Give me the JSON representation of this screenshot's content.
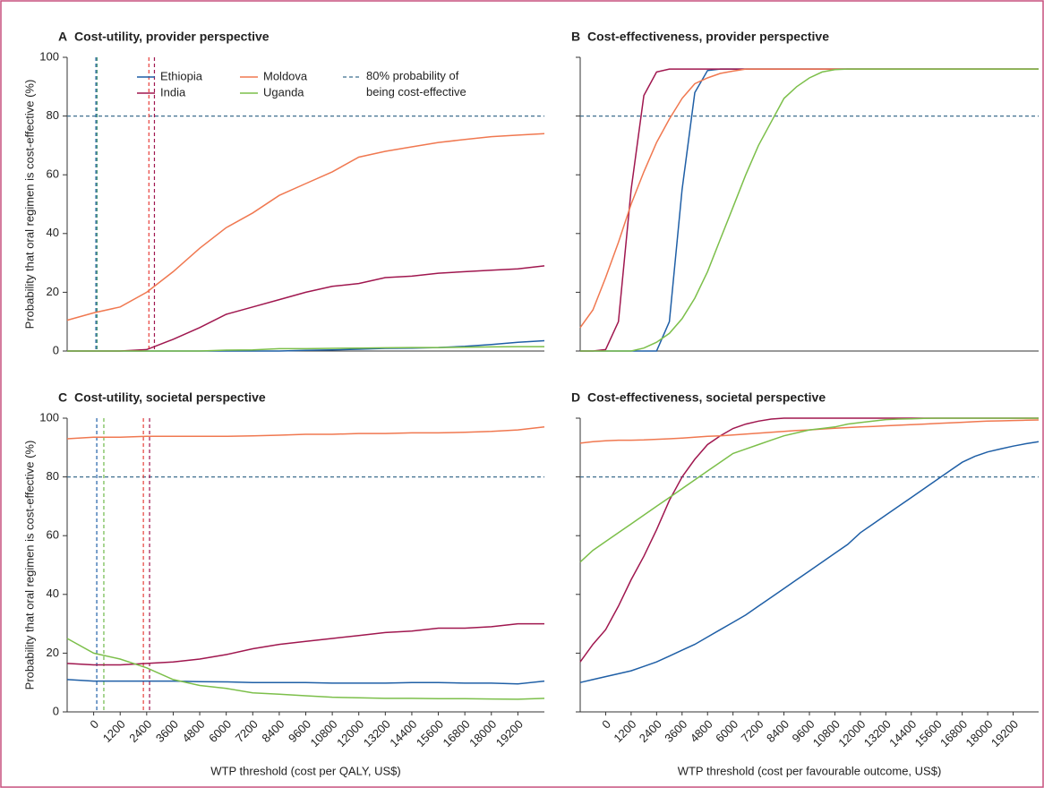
{
  "chart_data": [
    {
      "type": "line",
      "label": "A",
      "title": "Cost-utility, provider perspective",
      "ylabel": "Probability that oral regimen is cost-effective (%)",
      "x": [
        -1200,
        0,
        1200,
        2400,
        3600,
        4800,
        6000,
        7200,
        8400,
        9600,
        10800,
        12000,
        13200,
        14400,
        15600,
        16800,
        18000,
        19200,
        20400
      ],
      "xlim": [
        -1200,
        20400
      ],
      "ylim": [
        0,
        100
      ],
      "yticks": [
        0,
        20,
        40,
        60,
        80,
        100
      ],
      "ytick_labels": true,
      "legend": true,
      "reference": {
        "value": 80,
        "color": "#3f6f8f",
        "label": [
          "80% probability of",
          "being cost-effective"
        ]
      },
      "vlines": [
        {
          "x": 100,
          "color": "#1f5fa6"
        },
        {
          "x": 150,
          "color": "#3f8f6a"
        },
        {
          "x": 2500,
          "color": "#e8403a"
        },
        {
          "x": 2750,
          "color": "#a0174f"
        }
      ],
      "series": [
        {
          "name": "Ethiopia",
          "color": "#1f5fa6",
          "values": [
            0,
            0,
            0,
            0,
            0,
            0,
            0,
            0,
            0,
            0.2,
            0.4,
            0.6,
            0.9,
            1,
            1.2,
            1.6,
            2.2,
            3,
            3.5
          ]
        },
        {
          "name": "India",
          "color": "#a0174f",
          "values": [
            0,
            0,
            0,
            0.5,
            4,
            8,
            12.5,
            15,
            17.5,
            20,
            22,
            23,
            25,
            25.5,
            26.5,
            27,
            27.5,
            28,
            29
          ]
        },
        {
          "name": "Moldova",
          "color": "#f07850",
          "values": [
            10.5,
            13,
            15,
            20,
            27,
            35,
            42,
            47,
            53,
            57,
            61,
            66,
            68,
            69.5,
            71,
            72,
            73,
            73.5,
            74
          ]
        },
        {
          "name": "Uganda",
          "color": "#7cbf4a",
          "values": [
            0,
            0,
            0,
            0,
            0,
            0,
            0.3,
            0.4,
            0.8,
            0.8,
            0.9,
            1,
            1.1,
            1.2,
            1.2,
            1.3,
            1.4,
            1.5,
            1.5
          ]
        }
      ]
    },
    {
      "type": "line",
      "label": "B",
      "title": "Cost-effectiveness, provider perspective",
      "x": [
        -1200,
        -600,
        0,
        600,
        1200,
        1800,
        2400,
        3000,
        3600,
        4200,
        4800,
        5400,
        6000,
        6600,
        7200,
        7800,
        8400,
        9000,
        9600,
        10200,
        10800,
        11400,
        12000,
        12600,
        13200,
        13800,
        14400,
        15000,
        15600,
        16200,
        16800,
        17400,
        18000,
        18600,
        19200,
        19800,
        20400
      ],
      "xlim": [
        -1200,
        20400
      ],
      "ylim": [
        0,
        100
      ],
      "yticks": [
        0,
        20,
        40,
        60,
        80,
        100
      ],
      "ytick_labels": false,
      "legend": false,
      "reference": {
        "value": 80,
        "color": "#3f6f8f"
      },
      "series": [
        {
          "name": "Ethiopia",
          "color": "#1f5fa6",
          "values": [
            0,
            0,
            0,
            0,
            0,
            0,
            0,
            10,
            55,
            88,
            95.5,
            96,
            96,
            96,
            96,
            96,
            96,
            96,
            96,
            96,
            96,
            96,
            96,
            96,
            96,
            96,
            96,
            96,
            96,
            96,
            96,
            96,
            96,
            96,
            96,
            96,
            96
          ]
        },
        {
          "name": "India",
          "color": "#a0174f",
          "values": [
            0,
            0,
            0.5,
            10,
            55,
            87,
            95,
            96,
            96,
            96,
            96,
            96,
            96,
            96,
            96,
            96,
            96,
            96,
            96,
            96,
            96,
            96,
            96,
            96,
            96,
            96,
            96,
            96,
            96,
            96,
            96,
            96,
            96,
            96,
            96,
            96,
            96
          ]
        },
        {
          "name": "Moldova",
          "color": "#f07850",
          "values": [
            8,
            14,
            25,
            37,
            50,
            61,
            71,
            79,
            86,
            91,
            93,
            94.5,
            95.3,
            96,
            96,
            96,
            96,
            96,
            96,
            96,
            96,
            96,
            96,
            96,
            96,
            96,
            96,
            96,
            96,
            96,
            96,
            96,
            96,
            96,
            96,
            96,
            96
          ]
        },
        {
          "name": "Uganda",
          "color": "#7cbf4a",
          "values": [
            0,
            0,
            0,
            0,
            0,
            1,
            3,
            6,
            11,
            18,
            27,
            38,
            49,
            60,
            70,
            78,
            86,
            90,
            93,
            95,
            95.8,
            96,
            96,
            96,
            96,
            96,
            96,
            96,
            96,
            96,
            96,
            96,
            96,
            96,
            96,
            96,
            96
          ]
        }
      ]
    },
    {
      "type": "line",
      "label": "C",
      "title": "Cost-utility, societal perspective",
      "ylabel": "Probability that oral regimen is cost-effective (%)",
      "xlabel": "WTP threshold (cost per QALY, US$)",
      "x": [
        -1200,
        0,
        1200,
        2400,
        3600,
        4800,
        6000,
        7200,
        8400,
        9600,
        10800,
        12000,
        13200,
        14400,
        15600,
        16800,
        18000,
        19200,
        20400
      ],
      "xlim": [
        -1200,
        20400
      ],
      "ylim": [
        0,
        100
      ],
      "yticks": [
        0,
        20,
        40,
        60,
        80,
        100
      ],
      "ytick_labels": true,
      "legend": false,
      "xticks": [
        0,
        1200,
        2400,
        3600,
        4800,
        6000,
        7200,
        8400,
        9600,
        10800,
        12000,
        13200,
        14400,
        15600,
        16800,
        18000,
        19200
      ],
      "reference": {
        "value": 80,
        "color": "#3f6f8f"
      },
      "vlines": [
        {
          "x": 140,
          "color": "#1f5fa6"
        },
        {
          "x": 460,
          "color": "#6fb84a"
        },
        {
          "x": 2250,
          "color": "#e8403a"
        },
        {
          "x": 2530,
          "color": "#a0174f"
        }
      ],
      "series": [
        {
          "name": "Ethiopia",
          "color": "#1f5fa6",
          "values": [
            11,
            10.5,
            10.5,
            10.5,
            10.5,
            10.3,
            10.2,
            10,
            10,
            10,
            9.8,
            9.8,
            9.8,
            10,
            10,
            9.8,
            9.8,
            9.5,
            10.5
          ]
        },
        {
          "name": "India",
          "color": "#a0174f",
          "values": [
            16.5,
            16,
            16,
            16.5,
            17,
            18,
            19.5,
            21.5,
            23,
            24,
            25,
            26,
            27,
            27.5,
            28.5,
            28.5,
            29,
            30,
            30
          ]
        },
        {
          "name": "Moldova",
          "color": "#f07850",
          "values": [
            93,
            93.5,
            93.5,
            93.8,
            93.8,
            93.8,
            93.8,
            94,
            94.2,
            94.5,
            94.5,
            94.8,
            94.8,
            95,
            95,
            95.2,
            95.5,
            96,
            97
          ]
        },
        {
          "name": "Uganda",
          "color": "#7cbf4a",
          "values": [
            25,
            20,
            18,
            15,
            11,
            9,
            8,
            6.5,
            6,
            5.5,
            5,
            4.8,
            4.6,
            4.6,
            4.5,
            4.5,
            4.4,
            4.3,
            4.6
          ]
        }
      ]
    },
    {
      "type": "line",
      "label": "D",
      "title": "Cost-effectiveness, societal perspective",
      "xlabel": "WTP threshold (cost per favourable outcome, US$)",
      "x": [
        -1200,
        -600,
        0,
        600,
        1200,
        1800,
        2400,
        3000,
        3600,
        4200,
        4800,
        5400,
        6000,
        6600,
        7200,
        7800,
        8400,
        9000,
        9600,
        10200,
        10800,
        11400,
        12000,
        12600,
        13200,
        13800,
        14400,
        15000,
        15600,
        16200,
        16800,
        17400,
        18000,
        18600,
        19200,
        19800,
        20400
      ],
      "xlim": [
        -1200,
        20400
      ],
      "ylim": [
        0,
        100
      ],
      "yticks": [
        0,
        20,
        40,
        60,
        80,
        100
      ],
      "ytick_labels": false,
      "legend": false,
      "xticks": [
        0,
        1200,
        2400,
        3600,
        4800,
        6000,
        7200,
        8400,
        9600,
        10800,
        12000,
        13200,
        14400,
        15600,
        16800,
        18000,
        19200
      ],
      "reference": {
        "value": 80,
        "color": "#3f6f8f"
      },
      "series": [
        {
          "name": "Ethiopia",
          "color": "#1f5fa6",
          "values": [
            10,
            11,
            12,
            13,
            14,
            15.5,
            17,
            19,
            21,
            23,
            25.5,
            28,
            30.5,
            33,
            36,
            39,
            42,
            45,
            48,
            51,
            54,
            57,
            61,
            64,
            67,
            70,
            73,
            76,
            79,
            82,
            85,
            87,
            88.5,
            89.5,
            90.5,
            91.3,
            92
          ]
        },
        {
          "name": "India",
          "color": "#a0174f",
          "values": [
            17,
            23,
            28,
            36,
            45,
            53,
            62,
            72,
            80,
            86,
            91,
            94,
            96.5,
            98,
            99,
            99.7,
            100,
            100,
            100,
            100,
            100,
            100,
            100,
            100,
            100,
            100,
            100,
            100,
            100,
            100,
            100,
            100,
            100,
            100,
            100,
            100,
            100
          ]
        },
        {
          "name": "Moldova",
          "color": "#f07850",
          "values": [
            91.5,
            92,
            92.3,
            92.5,
            92.5,
            92.6,
            92.8,
            93,
            93.2,
            93.5,
            93.8,
            94,
            94.3,
            94.6,
            94.9,
            95.2,
            95.5,
            95.8,
            96,
            96.3,
            96.6,
            96.8,
            97,
            97.2,
            97.4,
            97.6,
            97.8,
            98,
            98.2,
            98.4,
            98.6,
            98.8,
            99,
            99.1,
            99.2,
            99.3,
            99.4
          ]
        },
        {
          "name": "Uganda",
          "color": "#7cbf4a",
          "values": [
            51,
            55,
            58,
            61,
            64,
            67,
            70,
            73,
            76,
            79,
            82,
            85,
            88,
            89.5,
            91,
            92.5,
            94,
            95,
            96,
            96.5,
            97,
            98,
            98.5,
            99,
            99.5,
            99.7,
            99.8,
            99.9,
            100,
            100,
            100,
            100,
            100,
            100,
            100,
            100,
            100
          ]
        }
      ]
    }
  ]
}
